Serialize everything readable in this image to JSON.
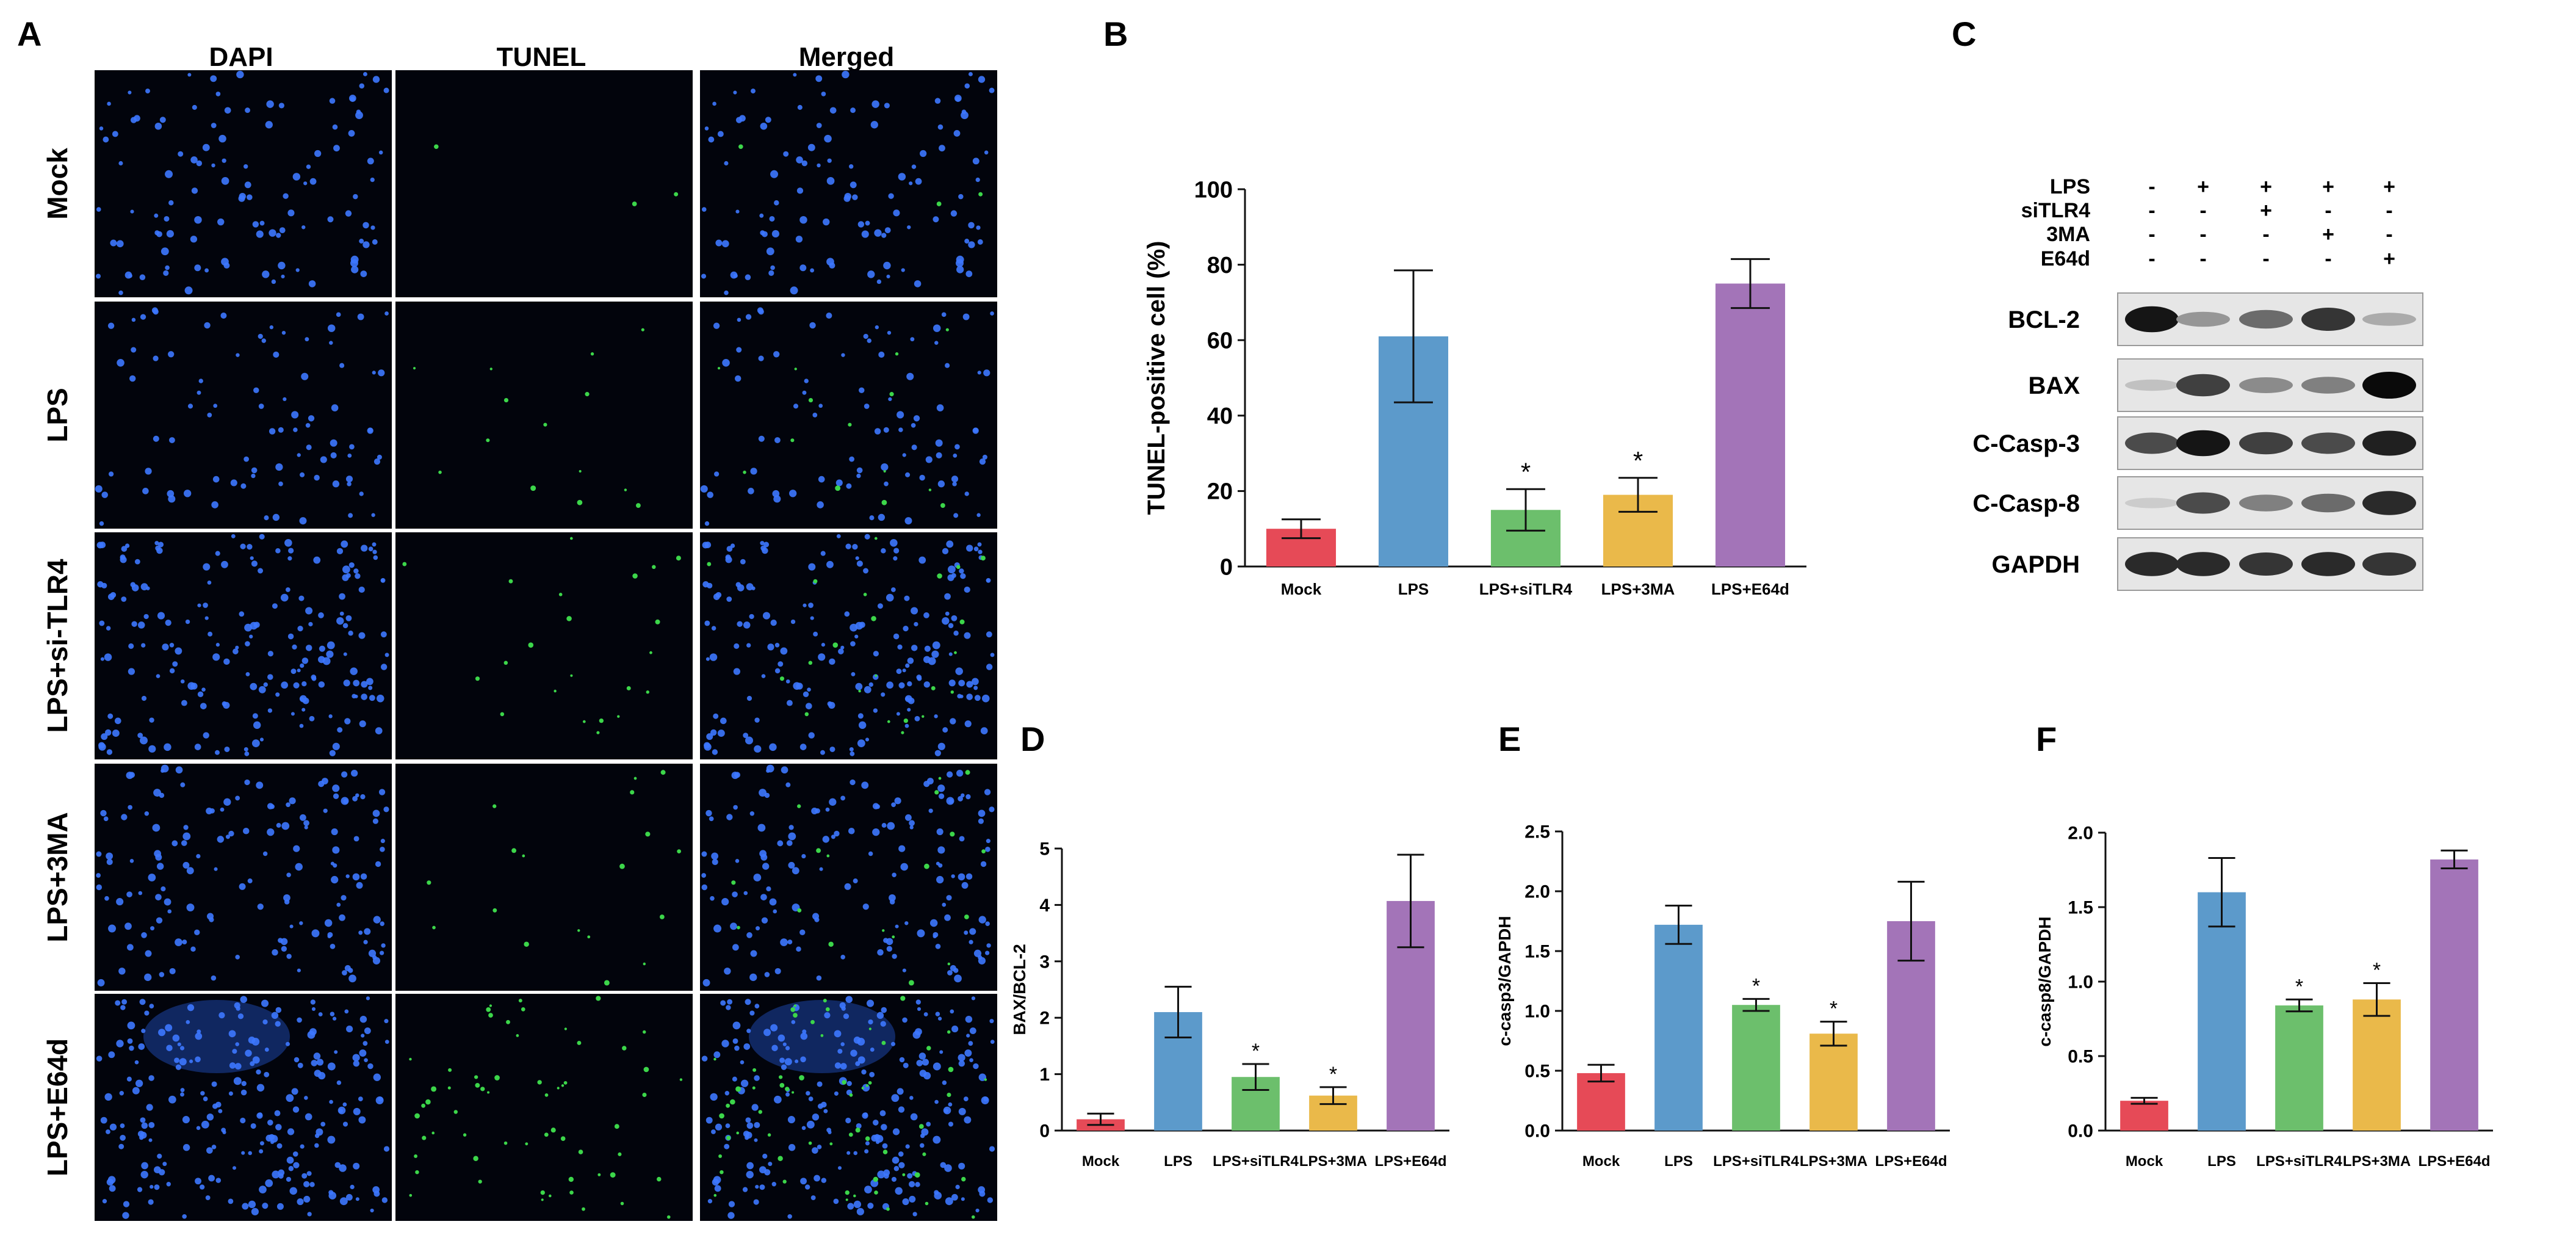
{
  "colors": {
    "mock": "#e64a57",
    "lps": "#5c9acb",
    "sitlr4": "#6cbf6c",
    "threema": "#eab94a",
    "e64d": "#a374b8",
    "dapi": "#3d78ff",
    "tunel": "#3cd64a"
  },
  "panel_a": {
    "label": "A",
    "columns": [
      "DAPI",
      "TUNEL",
      "Merged"
    ],
    "rows": [
      "Mock",
      "LPS",
      "LPS+si-TLR4",
      "LPS+3MA",
      "LPS+E64d"
    ]
  },
  "panel_c": {
    "label": "C",
    "conditions": [
      {
        "name": "LPS",
        "values": [
          "-",
          "+",
          "+",
          "+",
          "+"
        ]
      },
      {
        "name": "siTLR4",
        "values": [
          "-",
          "-",
          "+",
          "-",
          "-"
        ]
      },
      {
        "name": "3MA",
        "values": [
          "-",
          "-",
          "-",
          "+",
          "-"
        ]
      },
      {
        "name": "E64d",
        "values": [
          "-",
          "-",
          "-",
          "-",
          "+"
        ]
      }
    ],
    "blots": [
      {
        "name": "BCL-2",
        "intensity": [
          0.95,
          0.35,
          0.55,
          0.8,
          0.25
        ]
      },
      {
        "name": "BAX",
        "intensity": [
          0.15,
          0.75,
          0.4,
          0.45,
          1.0
        ]
      },
      {
        "name": "C-Casp-3",
        "intensity": [
          0.7,
          0.95,
          0.75,
          0.7,
          0.9
        ]
      },
      {
        "name": "C-Casp-8",
        "intensity": [
          0.1,
          0.7,
          0.45,
          0.55,
          0.85
        ]
      },
      {
        "name": "GAPDH",
        "intensity": [
          0.85,
          0.85,
          0.8,
          0.85,
          0.8
        ]
      }
    ]
  },
  "chart_data": [
    {
      "panel": "B",
      "type": "bar",
      "categories": [
        "Mock",
        "LPS",
        "LPS+siTLR4",
        "LPS+3MA",
        "LPS+E64d"
      ],
      "values": [
        10,
        61,
        15,
        19,
        75
      ],
      "errors": [
        2.5,
        17.5,
        5.5,
        4.5,
        6.5
      ],
      "significance": [
        "",
        "",
        "*",
        "*",
        ""
      ],
      "ylabel": "TUNEL-positive cell (%)",
      "ylim": [
        0,
        100
      ],
      "yticks": [
        0,
        20,
        40,
        60,
        80,
        100
      ],
      "ytick_labels": [
        "0",
        "20",
        "40",
        "60",
        "80",
        "100"
      ]
    },
    {
      "panel": "D",
      "type": "bar",
      "categories": [
        "Mock",
        "LPS",
        "LPS+siTLR4",
        "LPS+3MA",
        "LPS+E64d"
      ],
      "values": [
        0.2,
        2.1,
        0.95,
        0.62,
        4.07
      ],
      "errors": [
        0.1,
        0.45,
        0.23,
        0.15,
        0.82
      ],
      "significance": [
        "",
        "",
        "*",
        "*",
        ""
      ],
      "ylabel": "BAX/BCL-2",
      "ylim": [
        0,
        5
      ],
      "yticks": [
        0,
        1,
        2,
        3,
        4,
        5
      ],
      "ytick_labels": [
        "0",
        "1",
        "2",
        "3",
        "4",
        "5"
      ]
    },
    {
      "panel": "E",
      "type": "bar",
      "categories": [
        "Mock",
        "LPS",
        "LPS+siTLR4",
        "LPS+3MA",
        "LPS+E64d"
      ],
      "values": [
        0.48,
        1.72,
        1.05,
        0.81,
        1.75
      ],
      "errors": [
        0.07,
        0.16,
        0.05,
        0.1,
        0.33
      ],
      "significance": [
        "",
        "",
        "*",
        "*",
        ""
      ],
      "ylabel": "c-casp3/GAPDH",
      "ylim": [
        0,
        2.5
      ],
      "yticks": [
        0,
        0.5,
        1.0,
        1.5,
        2.0,
        2.5
      ],
      "ytick_labels": [
        "0.0",
        "0.5",
        "1.0",
        "1.5",
        "2.0",
        "2.5"
      ]
    },
    {
      "panel": "F",
      "type": "bar",
      "categories": [
        "Mock",
        "LPS",
        "LPS+siTLR4",
        "LPS+3MA",
        "LPS+E64d"
      ],
      "values": [
        0.2,
        1.6,
        0.84,
        0.88,
        1.82
      ],
      "errors": [
        0.02,
        0.23,
        0.04,
        0.11,
        0.06
      ],
      "significance": [
        "",
        "",
        "*",
        "*",
        ""
      ],
      "ylabel": "c-casp8/GAPDH",
      "ylim": [
        0,
        2.0
      ],
      "yticks": [
        0,
        0.5,
        1.0,
        1.5,
        2.0
      ],
      "ytick_labels": [
        "0.0",
        "0.5",
        "1.0",
        "1.5",
        "2.0"
      ]
    }
  ]
}
